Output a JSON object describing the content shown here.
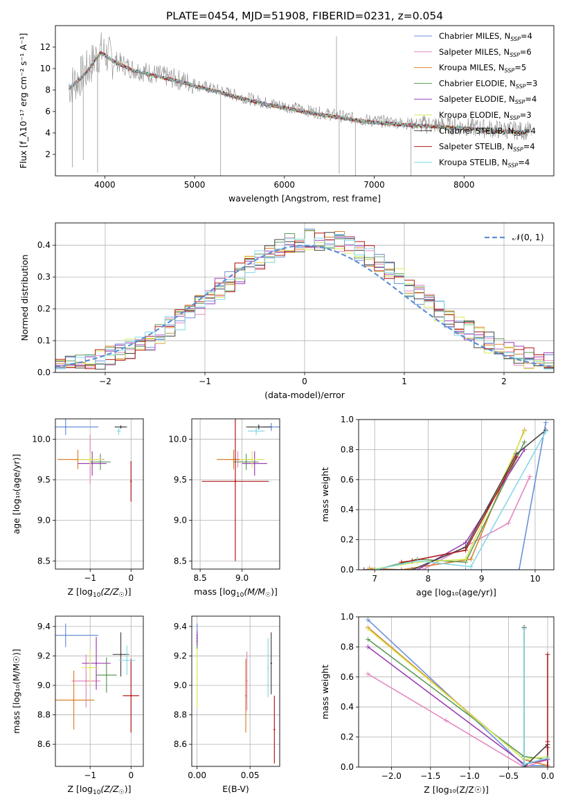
{
  "figure_title": "PLATE=0454, MJD=51908, FIBERID=0231, z=0.054",
  "colors": {
    "Chabrier MILES": "#6a8fd8",
    "Salpeter MILES": "#e487bf",
    "Kroupa MILES": "#d9822b",
    "Chabrier ELODIE": "#5e9a5a",
    "Salpeter ELODIE": "#9b3fb5",
    "Kroupa ELODIE": "#d6ea5a",
    "Chabrier STELIB": "#444444",
    "Salpeter STELIB": "#b01818",
    "Kroupa STELIB": "#85d8e6",
    "data": "#888888",
    "gauss": "#5b8fd6",
    "grid": "#b0b0b0"
  },
  "chart_data": [
    {
      "id": "spectrum",
      "type": "line",
      "xlabel": "wavelength [Angstrom, rest frame]",
      "ylabel": "Flux [f_λ10⁻¹⁷ erg cm⁻² s⁻¹ A⁻¹]",
      "xlim": [
        3450,
        9000
      ],
      "ylim": [
        0,
        14
      ],
      "xticks": [
        4000,
        5000,
        6000,
        7000,
        8000
      ],
      "yticks": [
        2,
        4,
        6,
        8,
        10,
        12
      ],
      "grid": false,
      "legend_position": "top-right",
      "continuum": {
        "x": [
          3600,
          3700,
          3800,
          3900,
          3950,
          4000,
          4100,
          4200,
          4300,
          4500,
          4700,
          4900,
          5100,
          5300,
          5500,
          5800,
          6000,
          6300,
          6600,
          6900,
          7200,
          7500,
          7800,
          8100,
          8400,
          8700
        ],
        "y": [
          8.3,
          9.0,
          9.8,
          11.0,
          11.6,
          11.4,
          10.8,
          10.4,
          10.0,
          9.6,
          9.2,
          8.8,
          8.3,
          7.9,
          7.4,
          6.8,
          6.5,
          6.0,
          5.6,
          5.2,
          5.0,
          4.8,
          4.7,
          4.5,
          4.3,
          4.2
        ]
      },
      "legend": [
        {
          "label": "Chabrier MILES, N",
          "ssp": "4"
        },
        {
          "label": "Salpeter MILES, N",
          "ssp": "6"
        },
        {
          "label": "Kroupa MILES, N",
          "ssp": "5"
        },
        {
          "label": "Chabrier ELODIE, N",
          "ssp": "3"
        },
        {
          "label": "Salpeter ELODIE, N",
          "ssp": "4"
        },
        {
          "label": "Kroupa ELODIE, N",
          "ssp": "3"
        },
        {
          "label": "Chabrier STELIB, N",
          "ssp": "4"
        },
        {
          "label": "Salpeter STELIB, N",
          "ssp": "4"
        },
        {
          "label": "Kroupa STELIB, N",
          "ssp": "4"
        }
      ],
      "ssp_subscript": "SSP"
    },
    {
      "id": "residuals",
      "type": "bar",
      "xlabel": "(data-model)/error",
      "ylabel": "Normed distribution",
      "xlim": [
        -2.5,
        2.5
      ],
      "ylim": [
        0,
        0.47
      ],
      "xticks": [
        -2,
        -1,
        0,
        1,
        2
      ],
      "yticks": [
        0.0,
        0.1,
        0.2,
        0.3,
        0.4
      ],
      "grid": true,
      "legend_position": "top-right",
      "gauss_label": "𝒩(0, 1)",
      "bin_width": 0.1,
      "bins_start": -2.5
    },
    {
      "id": "age_vs_Z",
      "type": "scatter",
      "xlabel_main": "Z [log",
      "xlabel_sub": "10",
      "xlabel_rest": "(Z/Z",
      "xlabel_end": ")]",
      "ylabel": "age  [log₁₀(age/yr)]",
      "xlim": [
        -1.85,
        0.3
      ],
      "ylim": [
        8.4,
        10.25
      ],
      "xticks": [
        -1,
        0
      ],
      "yticks": [
        8.5,
        9.0,
        9.5,
        10.0
      ],
      "grid": true,
      "points": [
        {
          "model": "Chabrier MILES",
          "x": -1.6,
          "y": 10.15,
          "xerr": 0.8,
          "yerr": 0.1
        },
        {
          "model": "Salpeter MILES",
          "x": -1.0,
          "y": 9.75,
          "xerr": 0.35,
          "yerr": 0.3
        },
        {
          "model": "Kroupa MILES",
          "x": -1.3,
          "y": 9.75,
          "xerr": 0.5,
          "yerr": 0.12
        },
        {
          "model": "Chabrier ELODIE",
          "x": -0.75,
          "y": 9.72,
          "xerr": 0.25,
          "yerr": 0.1
        },
        {
          "model": "Salpeter ELODIE",
          "x": -0.95,
          "y": 9.7,
          "xerr": 0.35,
          "yerr": 0.15
        },
        {
          "model": "Kroupa ELODIE",
          "x": -1.0,
          "y": 9.75,
          "xerr": 0.3,
          "yerr": 0.08
        },
        {
          "model": "Chabrier STELIB",
          "x": -0.25,
          "y": 10.15,
          "xerr": 0.15,
          "yerr": 0.02
        },
        {
          "model": "Salpeter STELIB",
          "x": 0.0,
          "y": 9.48,
          "xerr": 0.01,
          "yerr": 0.25
        },
        {
          "model": "Kroupa STELIB",
          "x": -0.3,
          "y": 10.1,
          "xerr": 0.05,
          "yerr": 0.05
        }
      ]
    },
    {
      "id": "age_vs_mass",
      "type": "scatter",
      "xlabel_main": "mass [log",
      "xlabel_sub": "10",
      "xlabel_rest": "(M/M",
      "xlabel_end": ")]",
      "ylabel": "",
      "xlim": [
        8.4,
        9.45
      ],
      "ylim": [
        8.4,
        10.25
      ],
      "xticks": [
        8.5,
        9.0
      ],
      "yticks": [
        8.5,
        9.0,
        9.5,
        10.0
      ],
      "grid": true,
      "points": [
        {
          "model": "Chabrier MILES",
          "x": 9.35,
          "y": 10.15,
          "xerr": 0.1,
          "yerr": 0.05
        },
        {
          "model": "Salpeter MILES",
          "x": 8.95,
          "y": 9.75,
          "xerr": 0.15,
          "yerr": 0.1
        },
        {
          "model": "Kroupa MILES",
          "x": 8.9,
          "y": 9.75,
          "xerr": 0.2,
          "yerr": 0.12
        },
        {
          "model": "Chabrier ELODIE",
          "x": 9.05,
          "y": 9.72,
          "xerr": 0.15,
          "yerr": 0.1
        },
        {
          "model": "Salpeter ELODIE",
          "x": 9.15,
          "y": 9.7,
          "xerr": 0.15,
          "yerr": 0.15
        },
        {
          "model": "Kroupa ELODIE",
          "x": 9.12,
          "y": 9.75,
          "xerr": 0.15,
          "yerr": 0.1
        },
        {
          "model": "Chabrier STELIB",
          "x": 9.2,
          "y": 10.15,
          "xerr": 0.15,
          "yerr": 0.03
        },
        {
          "model": "Salpeter STELIB",
          "x": 8.92,
          "y": 9.48,
          "xerr": 0.4,
          "yerr": 0.98
        },
        {
          "model": "Kroupa STELIB",
          "x": 9.17,
          "y": 10.1,
          "xerr": 0.1,
          "yerr": 0.05
        }
      ]
    },
    {
      "id": "mw_vs_age",
      "type": "line",
      "xlabel": "age  [log₁₀(age/yr)]",
      "ylabel": "mass weight",
      "xlim": [
        6.7,
        10.35
      ],
      "ylim": [
        0,
        1.0
      ],
      "xticks": [
        7,
        8,
        9,
        10
      ],
      "yticks": [
        0.0,
        0.2,
        0.4,
        0.6,
        0.8,
        1.0
      ],
      "grid": true,
      "series": [
        {
          "model": "Chabrier MILES",
          "x": [
            7.0,
            7.5,
            8.7,
            9.7,
            10.2
          ],
          "y": [
            0.0,
            0.0,
            0.0,
            0.0,
            0.98
          ]
        },
        {
          "model": "Salpeter MILES",
          "x": [
            6.8,
            7.2,
            7.9,
            9.5,
            9.9
          ],
          "y": [
            0.0,
            0.0,
            0.0,
            0.31,
            0.62
          ]
        },
        {
          "model": "Kroupa MILES",
          "x": [
            6.9,
            7.5,
            8.8,
            9.8
          ],
          "y": [
            0.01,
            0.0,
            0.07,
            0.93
          ]
        },
        {
          "model": "Chabrier ELODIE",
          "x": [
            7.0,
            7.8,
            8.7,
            9.8
          ],
          "y": [
            0.0,
            0.07,
            0.05,
            0.85
          ]
        },
        {
          "model": "Salpeter ELODIE",
          "x": [
            6.9,
            7.8,
            8.7,
            9.8
          ],
          "y": [
            0.0,
            0.0,
            0.18,
            0.8
          ]
        },
        {
          "model": "Kroupa ELODIE",
          "x": [
            6.9,
            7.8,
            8.7,
            9.8
          ],
          "y": [
            0.0,
            0.05,
            0.07,
            0.92
          ]
        },
        {
          "model": "Chabrier STELIB",
          "x": [
            6.8,
            7.7,
            8.7,
            9.65,
            10.2
          ],
          "y": [
            0.0,
            0.0,
            0.15,
            0.77,
            0.93
          ]
        },
        {
          "model": "Salpeter STELIB",
          "x": [
            7.5,
            7.7,
            8.7,
            9.65
          ],
          "y": [
            0.05,
            0.06,
            0.13,
            0.75
          ]
        },
        {
          "model": "Kroupa STELIB",
          "x": [
            7.0,
            7.8,
            8.8,
            10.2
          ],
          "y": [
            0.0,
            0.06,
            0.02,
            0.92
          ]
        }
      ]
    },
    {
      "id": "mass_vs_Z",
      "type": "scatter",
      "xlabel_main": "Z [log",
      "xlabel_sub": "10",
      "xlabel_rest": "(Z/Z",
      "xlabel_end": ")]",
      "ylabel": "mass [log₁₀(M/M☉)]",
      "xlim": [
        -1.85,
        0.3
      ],
      "ylim": [
        8.45,
        9.47
      ],
      "xticks": [
        -1,
        0
      ],
      "yticks": [
        8.6,
        8.8,
        9.0,
        9.2,
        9.4
      ],
      "grid": true,
      "points": [
        {
          "model": "Chabrier MILES",
          "x": -1.6,
          "y": 9.34,
          "xerr": 0.8,
          "yerr": 0.08
        },
        {
          "model": "Salpeter MILES",
          "x": -1.1,
          "y": 9.03,
          "xerr": 0.35,
          "yerr": 0.18
        },
        {
          "model": "Kroupa MILES",
          "x": -1.4,
          "y": 8.9,
          "xerr": 0.5,
          "yerr": 0.2
        },
        {
          "model": "Chabrier ELODIE",
          "x": -0.6,
          "y": 9.07,
          "xerr": 0.25,
          "yerr": 0.12
        },
        {
          "model": "Salpeter ELODIE",
          "x": -0.85,
          "y": 9.15,
          "xerr": 0.35,
          "yerr": 0.18
        },
        {
          "model": "Kroupa ELODIE",
          "x": -1.0,
          "y": 9.12,
          "xerr": 0.2,
          "yerr": 0.12
        },
        {
          "model": "Chabrier STELIB",
          "x": -0.25,
          "y": 9.21,
          "xerr": 0.2,
          "yerr": 0.15
        },
        {
          "model": "Salpeter STELIB",
          "x": 0.0,
          "y": 8.93,
          "xerr": 0.2,
          "yerr": 0.25
        },
        {
          "model": "Kroupa STELIB",
          "x": -0.1,
          "y": 9.17,
          "xerr": 0.2,
          "yerr": 0.1
        }
      ]
    },
    {
      "id": "mass_vs_ebv",
      "type": "scatter",
      "xlabel": "E(B-V)",
      "ylabel": "",
      "xlim": [
        -0.005,
        0.078
      ],
      "ylim": [
        8.45,
        9.47
      ],
      "xticks": [
        0.0,
        0.05
      ],
      "xticklabels": [
        "0.00",
        "0.05"
      ],
      "yticks": [
        8.6,
        8.8,
        9.0,
        9.2,
        9.4
      ],
      "grid": true,
      "points": [
        {
          "model": "Chabrier MILES",
          "x": 0.0,
          "y": 9.34,
          "xerr": 0.0,
          "yerr": 0.08
        },
        {
          "model": "Salpeter MILES",
          "x": 0.047,
          "y": 9.03,
          "xerr": 0.0,
          "yerr": 0.2
        },
        {
          "model": "Kroupa MILES",
          "x": 0.046,
          "y": 8.93,
          "xerr": 0.0,
          "yerr": 0.25
        },
        {
          "model": "Chabrier ELODIE",
          "x": 0.0,
          "y": 9.3,
          "xerr": 0.0,
          "yerr": 0.06
        },
        {
          "model": "Salpeter ELODIE",
          "x": 0.0,
          "y": 9.32,
          "xerr": 0.0,
          "yerr": 0.05
        },
        {
          "model": "Kroupa ELODIE",
          "x": 0.0,
          "y": 9.05,
          "xerr": 0.0,
          "yerr": 0.2
        },
        {
          "model": "Chabrier STELIB",
          "x": 0.07,
          "y": 9.15,
          "xerr": 0.0,
          "yerr": 0.21
        },
        {
          "model": "Salpeter STELIB",
          "x": 0.073,
          "y": 8.7,
          "xerr": 0.0,
          "yerr": 0.23
        },
        {
          "model": "Kroupa STELIB",
          "x": 0.067,
          "y": 9.12,
          "xerr": 0.0,
          "yerr": 0.2
        }
      ]
    },
    {
      "id": "mw_vs_Z",
      "type": "line",
      "xlabel": "Z [log₁₀(Z/Z☉)]",
      "ylabel": "mass weight",
      "xlim": [
        -2.42,
        0.08
      ],
      "ylim": [
        0,
        1.0
      ],
      "xticks": [
        -2.0,
        -1.5,
        -1.0,
        -0.5,
        0.0
      ],
      "yticks": [
        0.0,
        0.2,
        0.4,
        0.6,
        0.8,
        1.0
      ],
      "grid": true,
      "series": [
        {
          "model": "Chabrier MILES",
          "x": [
            -2.3,
            -0.3,
            0.0
          ],
          "y": [
            0.98,
            0.01,
            0.01
          ]
        },
        {
          "model": "Salpeter MILES",
          "x": [
            -2.3,
            -1.3,
            -0.3,
            0.0
          ],
          "y": [
            0.62,
            0.31,
            0.0,
            0.05
          ]
        },
        {
          "model": "Kroupa MILES",
          "x": [
            -2.3,
            -0.3,
            0.0
          ],
          "y": [
            0.93,
            0.05,
            0.01
          ]
        },
        {
          "model": "Chabrier ELODIE",
          "x": [
            -2.3,
            -0.3,
            0.0
          ],
          "y": [
            0.85,
            0.07,
            0.05
          ]
        },
        {
          "model": "Salpeter ELODIE",
          "x": [
            -2.3,
            -0.3,
            0.0
          ],
          "y": [
            0.8,
            0.02,
            0.05
          ]
        },
        {
          "model": "Kroupa ELODIE",
          "x": [
            -2.3,
            -0.3,
            0.0
          ],
          "y": [
            0.92,
            0.05,
            0.07
          ]
        },
        {
          "model": "Chabrier STELIB",
          "x": [
            -0.3,
            -0.3,
            0.0,
            0.0
          ],
          "y": [
            0.93,
            0.0,
            0.15,
            0.0
          ]
        },
        {
          "model": "Salpeter STELIB",
          "x": [
            0.0,
            0.0,
            0.0,
            0.0
          ],
          "y": [
            0.75,
            0.17,
            0.13,
            0.0
          ]
        },
        {
          "model": "Kroupa STELIB",
          "x": [
            -0.3,
            -0.3,
            0.0
          ],
          "y": [
            0.92,
            0.02,
            0.06
          ]
        }
      ]
    }
  ]
}
